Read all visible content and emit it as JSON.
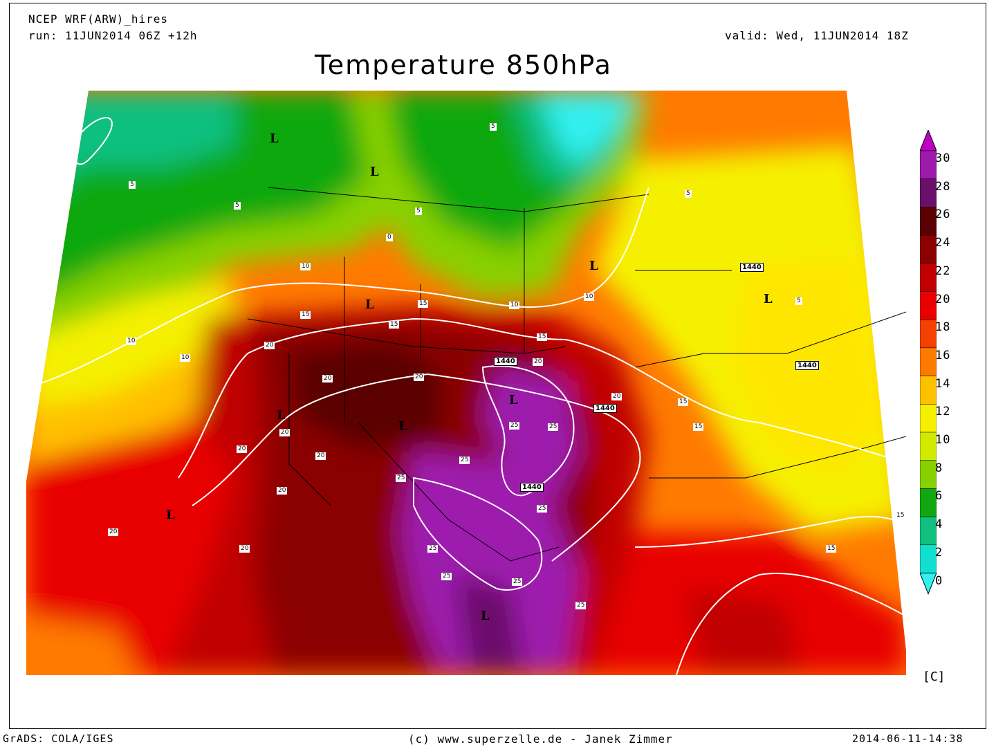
{
  "header": {
    "model": "NCEP WRF(ARW)_hires",
    "run": "run: 11JUN2014 06Z +12h",
    "valid": "valid: Wed, 11JUN2014 18Z",
    "title": "Temperature 850hPa"
  },
  "footer": {
    "left": "GrADS: COLA/IGES",
    "center": "(c) www.superzelle.de - Janek Zimmer",
    "right": "2014-06-11-14:38"
  },
  "colorbar": {
    "unit": "[C]",
    "labels": [
      "30",
      "28",
      "26",
      "24",
      "22",
      "20",
      "18",
      "16",
      "14",
      "12",
      "10",
      "8",
      "6",
      "4",
      "2",
      "0"
    ],
    "colors": [
      "#c000c0",
      "#9d1aad",
      "#6b0f6b",
      "#5a0000",
      "#8b0000",
      "#c00000",
      "#e80000",
      "#f44000",
      "#ff7a00",
      "#ffc000",
      "#f5f000",
      "#d2ea00",
      "#88d000",
      "#10a810",
      "#10c080",
      "#10e0d0",
      "#30f0f0"
    ]
  },
  "map": {
    "low_markers": [
      "L",
      "L",
      "L",
      "L",
      "L",
      "L",
      "L",
      "L",
      "L",
      "L",
      "L"
    ],
    "contour_labels": {
      "temp": [
        "5",
        "5",
        "5",
        "5",
        "5",
        "5",
        "0",
        "10",
        "10",
        "10",
        "10",
        "10",
        "15",
        "15",
        "15",
        "15",
        "15",
        "15",
        "15",
        "15",
        "20",
        "20",
        "20",
        "20",
        "20",
        "20",
        "20",
        "20",
        "20",
        "20",
        "20",
        "25",
        "25",
        "25",
        "25",
        "25",
        "25",
        "25",
        "25",
        "25"
      ],
      "height": [
        "1440",
        "1440",
        "1440",
        "1440",
        "1440"
      ]
    }
  }
}
